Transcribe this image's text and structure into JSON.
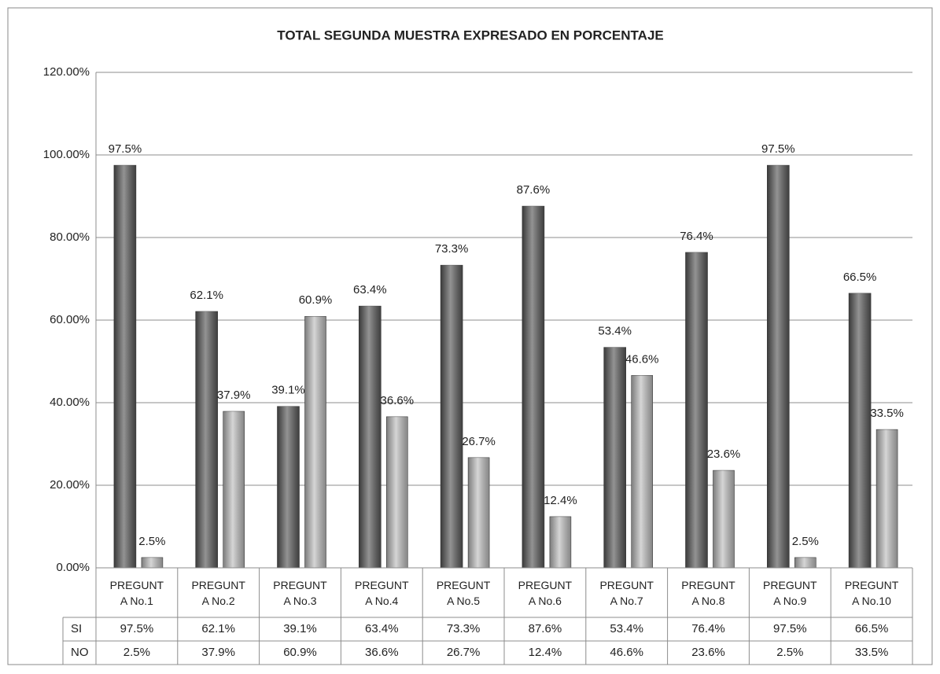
{
  "chart_data": {
    "type": "bar",
    "title": "TOTAL SEGUNDA MUESTRA EXPRESADO EN PORCENTAJE",
    "categories": [
      "PREGUNT A No.1",
      "PREGUNT A No.2",
      "PREGUNT A No.3",
      "PREGUNT A No.4",
      "PREGUNT A No.5",
      "PREGUNT A No.6",
      "PREGUNT A No.7",
      "PREGUNT A No.8",
      "PREGUNT A No.9",
      "PREGUNT A No.10"
    ],
    "series": [
      {
        "name": "SI",
        "color": "#595959",
        "values": [
          97.5,
          62.1,
          39.1,
          63.4,
          73.3,
          87.6,
          53.4,
          76.4,
          97.5,
          66.5
        ],
        "value_labels": [
          "97.5%",
          "62.1%",
          "39.1%",
          "63.4%",
          "73.3%",
          "87.6%",
          "53.4%",
          "76.4%",
          "97.5%",
          "66.5%"
        ]
      },
      {
        "name": "NO",
        "color": "#bfbfbf",
        "values": [
          2.5,
          37.9,
          60.9,
          36.6,
          26.7,
          12.4,
          46.6,
          23.6,
          2.5,
          33.5
        ],
        "value_labels": [
          "2.5%",
          "37.9%",
          "60.9%",
          "36.6%",
          "26.7%",
          "12.4%",
          "46.6%",
          "23.6%",
          "2.5%",
          "33.5%"
        ]
      }
    ],
    "ylim": [
      0,
      120
    ],
    "yticks": [
      {
        "value": 0,
        "label": "0.00%"
      },
      {
        "value": 20,
        "label": "20.00%"
      },
      {
        "value": 40,
        "label": "40.00%"
      },
      {
        "value": 60,
        "label": "60.00%"
      },
      {
        "value": 80,
        "label": "80.00%"
      },
      {
        "value": 100,
        "label": "100.00%"
      },
      {
        "value": 120,
        "label": "120.00%"
      }
    ],
    "grid": true
  }
}
